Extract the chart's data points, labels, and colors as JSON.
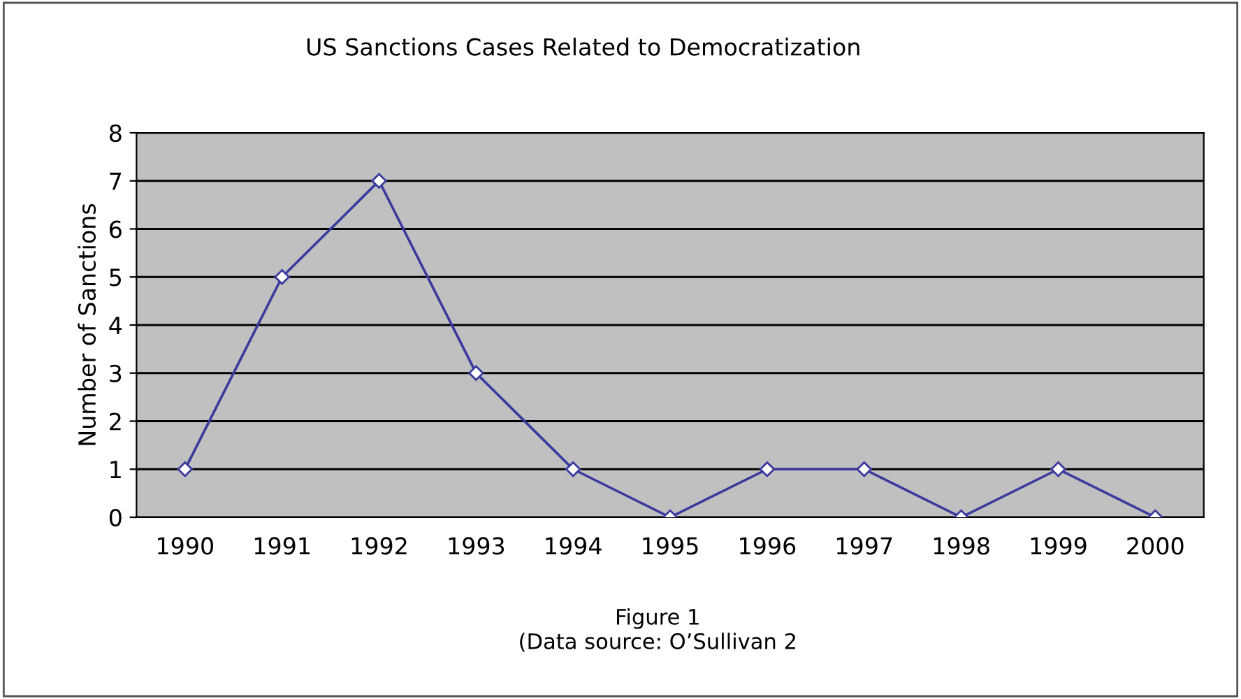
{
  "chart_data": {
    "type": "line",
    "title": "US Sanctions Cases Related to Democratization",
    "ylabel": "Number of Sanctions",
    "categories": [
      "1990",
      "1991",
      "1992",
      "1993",
      "1994",
      "1995",
      "1996",
      "1997",
      "1998",
      "1999",
      "2000"
    ],
    "series": [
      {
        "color": "#3a3a9e",
        "values": [
          1,
          5,
          7,
          3,
          1,
          0,
          1,
          1,
          0,
          1,
          0
        ]
      }
    ],
    "ylim": [
      0,
      8
    ],
    "yticks": [
      0,
      1,
      2,
      3,
      4,
      5,
      6,
      7,
      8
    ],
    "grid": "y",
    "legend": false,
    "marker": "diamond",
    "line_style": "solid",
    "annotations": [
      "Figure 1",
      "(Data source: O’Sullivan 2"
    ]
  }
}
